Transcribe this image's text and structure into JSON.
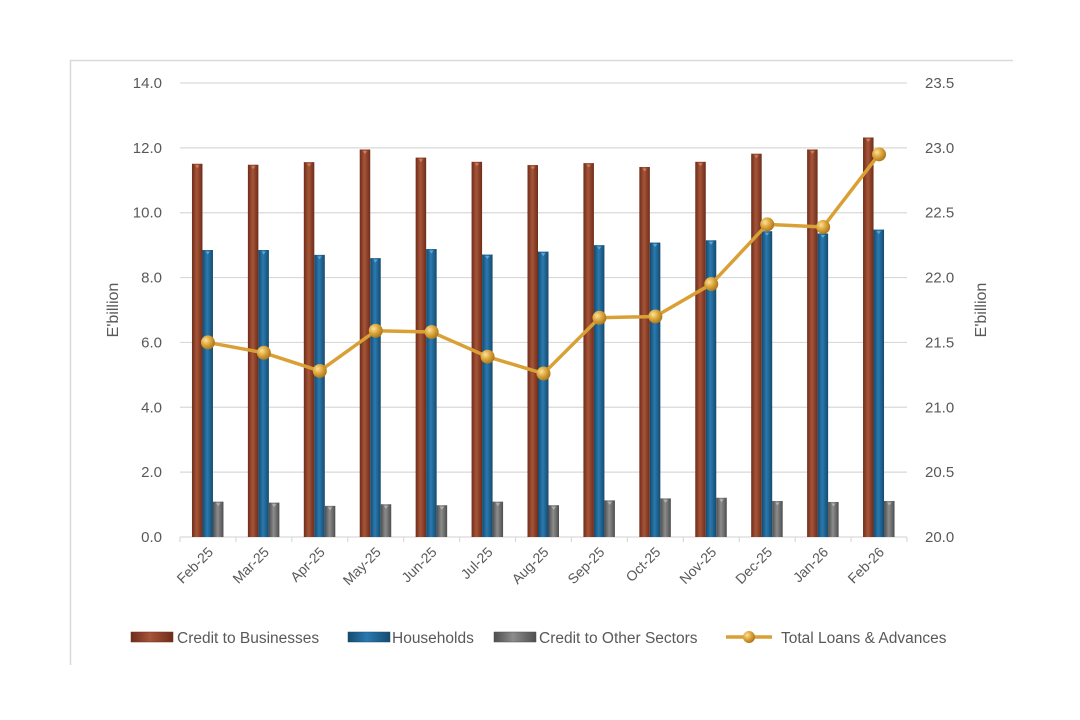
{
  "chart_data": {
    "type": "bar",
    "categories": [
      "Feb-25",
      "Mar-25",
      "Apr-25",
      "May-25",
      "Jun-25",
      "Jul-25",
      "Aug-25",
      "Sep-25",
      "Oct-25",
      "Nov-25",
      "Dec-25",
      "Jan-26",
      "Feb-26"
    ],
    "y_left": {
      "label": "E'billion",
      "range": [
        0,
        14
      ],
      "ticks": [
        "0.0",
        "2.0",
        "4.0",
        "6.0",
        "8.0",
        "10.0",
        "12.0",
        "14.0"
      ]
    },
    "y_right": {
      "label": "E'billion",
      "range": [
        20,
        23.5
      ],
      "ticks": [
        "20.0",
        "20.5",
        "21.0",
        "21.5",
        "22.0",
        "22.5",
        "23.0",
        "23.5"
      ]
    },
    "grid": true,
    "legend_position": "bottom",
    "series": [
      {
        "name": "Credit to Businesses",
        "type": "bar",
        "axis": "left",
        "color": "#8B3E27",
        "values": [
          11.51,
          11.48,
          11.56,
          11.95,
          11.7,
          11.57,
          11.47,
          11.53,
          11.41,
          11.57,
          11.82,
          11.95,
          12.32
        ]
      },
      {
        "name": "Households",
        "type": "bar",
        "axis": "left",
        "color": "#1F6391",
        "values": [
          8.85,
          8.85,
          8.7,
          8.6,
          8.88,
          8.71,
          8.8,
          9.0,
          9.08,
          9.15,
          9.43,
          9.36,
          9.48
        ]
      },
      {
        "name": "Credit to Other Sectors",
        "type": "bar",
        "axis": "left",
        "color": "#6E6E6E",
        "values": [
          1.09,
          1.06,
          0.96,
          1.01,
          0.98,
          1.09,
          0.98,
          1.13,
          1.19,
          1.21,
          1.11,
          1.08,
          1.11
        ]
      },
      {
        "name": "Total Loans & Advances",
        "type": "line",
        "axis": "right",
        "color": "#D9A135",
        "values": [
          21.5,
          21.42,
          21.28,
          21.59,
          21.58,
          21.39,
          21.26,
          21.69,
          21.7,
          21.95,
          22.41,
          22.39,
          22.95
        ]
      }
    ]
  }
}
